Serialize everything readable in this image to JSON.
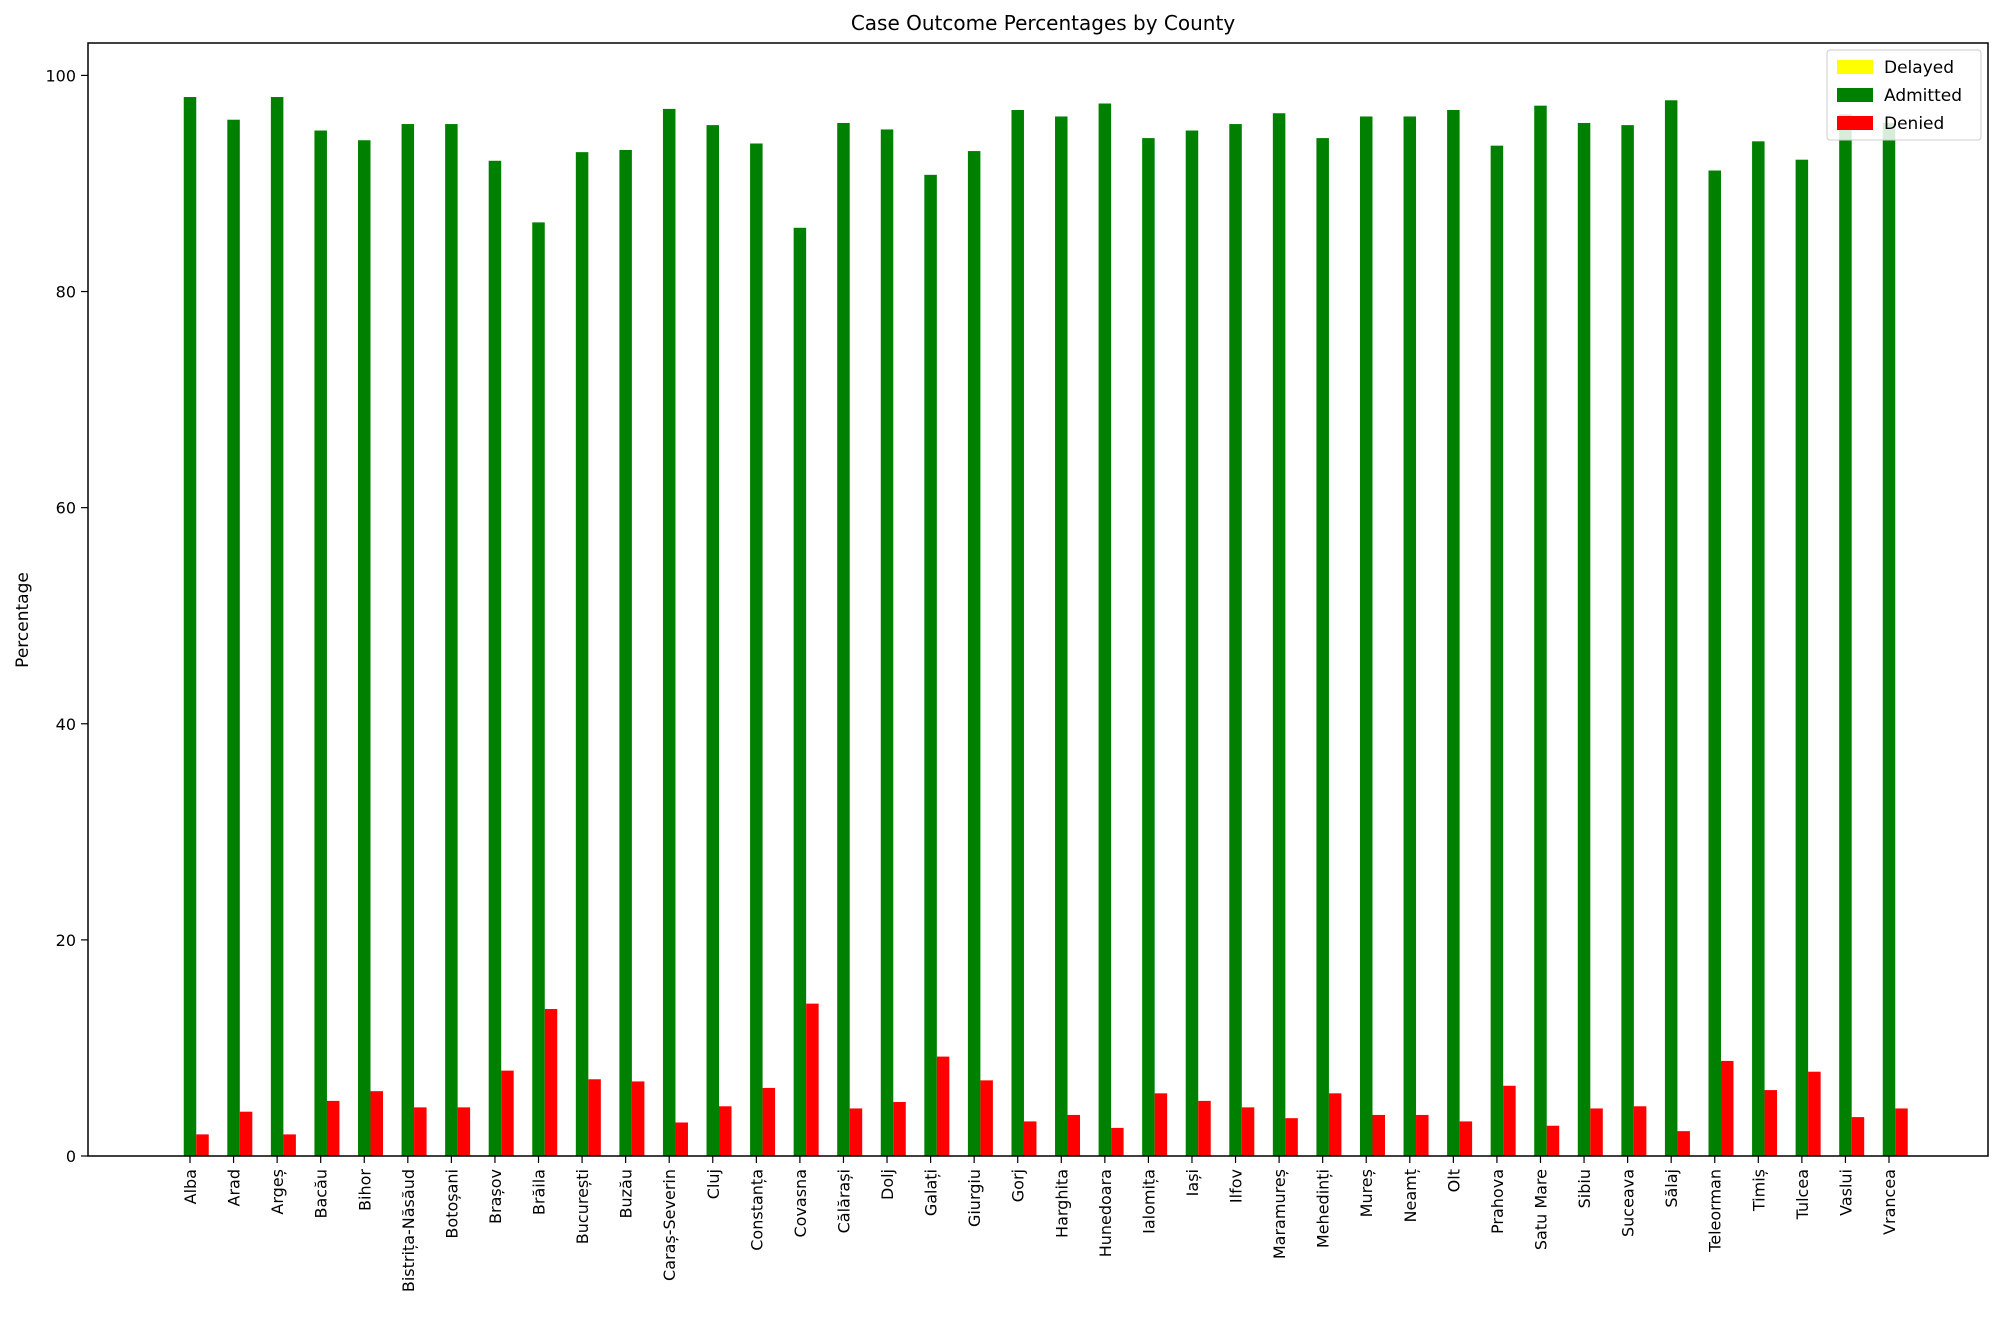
{
  "chart_data": {
    "type": "bar",
    "title": "Case Outcome Percentages by County",
    "xlabel": "",
    "ylabel": "Percentage",
    "ylim": [
      0,
      103
    ],
    "yticks": [
      0,
      20,
      40,
      60,
      80,
      100
    ],
    "grid": false,
    "legend_position": "top-right",
    "categories": [
      "Alba",
      "Arad",
      "Argeș",
      "Bacău",
      "Bihor",
      "Bistrița-Năsăud",
      "Botoșani",
      "Brașov",
      "Brăila",
      "București",
      "Buzău",
      "Caraș-Severin",
      "Cluj",
      "Constanța",
      "Covasna",
      "Călărași",
      "Dolj",
      "Galați",
      "Giurgiu",
      "Gorj",
      "Harghita",
      "Hunedoara",
      "Ialomița",
      "Iași",
      "Ilfov",
      "Maramureș",
      "Mehedinți",
      "Mureș",
      "Neamț",
      "Olt",
      "Prahova",
      "Satu Mare",
      "Sibiu",
      "Suceava",
      "Sălaj",
      "Teleorman",
      "Timiș",
      "Tulcea",
      "Vaslui",
      "Vrancea"
    ],
    "series": [
      {
        "name": "Delayed",
        "color": "#ffff00",
        "values": [
          0,
          0,
          0,
          0,
          0,
          0,
          0,
          0,
          0,
          0,
          0,
          0,
          0,
          0,
          0,
          0,
          0,
          0,
          0,
          0,
          0,
          0,
          0,
          0,
          0,
          0,
          0,
          0,
          0,
          0,
          0,
          0,
          0,
          0,
          0,
          0,
          0,
          0,
          0,
          0
        ]
      },
      {
        "name": "Admitted",
        "color": "#008000",
        "values": [
          98.0,
          95.9,
          98.0,
          94.9,
          94.0,
          95.5,
          95.5,
          92.1,
          86.4,
          92.9,
          93.1,
          96.9,
          95.4,
          93.7,
          85.9,
          95.6,
          95.0,
          90.8,
          93.0,
          96.8,
          96.2,
          97.4,
          94.2,
          94.9,
          95.5,
          96.5,
          94.2,
          96.2,
          96.2,
          96.8,
          93.5,
          97.2,
          95.6,
          95.4,
          97.7,
          91.2,
          93.9,
          92.2,
          96.4,
          95.6
        ]
      },
      {
        "name": "Denied",
        "color": "#ff0000",
        "values": [
          2.0,
          4.1,
          2.0,
          5.1,
          6.0,
          4.5,
          4.5,
          7.9,
          13.6,
          7.1,
          6.9,
          3.1,
          4.6,
          6.3,
          14.1,
          4.4,
          5.0,
          9.2,
          7.0,
          3.2,
          3.8,
          2.6,
          5.8,
          5.1,
          4.5,
          3.5,
          5.8,
          3.8,
          3.8,
          3.2,
          6.5,
          2.8,
          4.4,
          4.6,
          2.3,
          8.8,
          6.1,
          7.8,
          3.6,
          4.4
        ]
      }
    ]
  }
}
